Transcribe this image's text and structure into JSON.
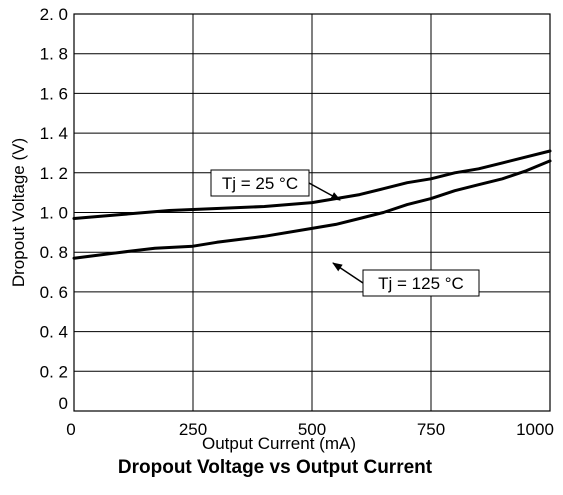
{
  "chart_data": {
    "type": "line",
    "title": "Dropout Voltage vs Output Current",
    "xlabel": "Output Current (mA)",
    "ylabel": "Dropout Voltage (V)",
    "xlim": [
      0,
      1000
    ],
    "ylim": [
      0,
      2.0
    ],
    "grid": true,
    "x_ticks": [
      {
        "value": 0,
        "label": "0"
      },
      {
        "value": 250,
        "label": "250"
      },
      {
        "value": 500,
        "label": "500"
      },
      {
        "value": 750,
        "label": "750"
      },
      {
        "value": 1000,
        "label": "1000"
      }
    ],
    "y_ticks": [
      {
        "value": 0,
        "label": "0"
      },
      {
        "value": 0.2,
        "label": "0. 2"
      },
      {
        "value": 0.4,
        "label": "0. 4"
      },
      {
        "value": 0.6,
        "label": "0. 6"
      },
      {
        "value": 0.8,
        "label": "0. 8"
      },
      {
        "value": 1.0,
        "label": "1. 0"
      },
      {
        "value": 1.2,
        "label": "1. 2"
      },
      {
        "value": 1.4,
        "label": "1. 4"
      },
      {
        "value": 1.6,
        "label": "1. 6"
      },
      {
        "value": 1.8,
        "label": "1. 8"
      },
      {
        "value": 2.0,
        "label": "2. 0"
      }
    ],
    "series": [
      {
        "name": "Tj = 25 °C",
        "color": "#000000",
        "x": [
          0,
          100,
          200,
          300,
          400,
          500,
          550,
          600,
          650,
          700,
          750,
          800,
          850,
          900,
          950,
          1000
        ],
        "y": [
          0.97,
          0.99,
          1.01,
          1.02,
          1.03,
          1.05,
          1.07,
          1.09,
          1.12,
          1.15,
          1.17,
          1.2,
          1.22,
          1.25,
          1.28,
          1.31
        ]
      },
      {
        "name": "Tj = 125 °C",
        "color": "#000000",
        "x": [
          0,
          100,
          170,
          250,
          300,
          400,
          500,
          550,
          600,
          650,
          700,
          750,
          800,
          850,
          900,
          950,
          1000
        ],
        "y": [
          0.77,
          0.8,
          0.82,
          0.83,
          0.85,
          0.88,
          0.92,
          0.94,
          0.97,
          1.0,
          1.04,
          1.07,
          1.11,
          1.14,
          1.17,
          1.21,
          1.26
        ]
      }
    ],
    "annotations": [
      {
        "label": "Tj = 25 °C",
        "series": 0
      },
      {
        "label": "Tj = 125 °C",
        "series": 1
      }
    ]
  }
}
